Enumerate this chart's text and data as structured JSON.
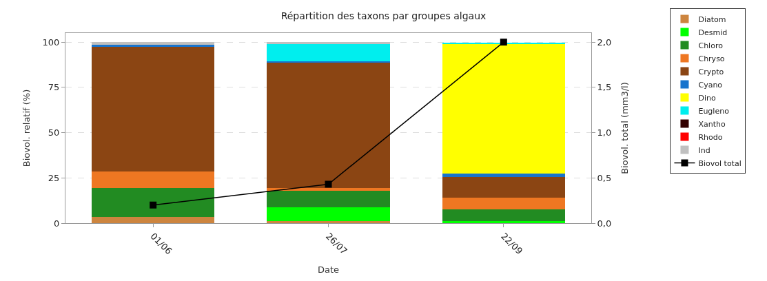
{
  "chart_data": {
    "type": "bar",
    "stacked": true,
    "title": "Répartition des taxons par groupes algaux",
    "xlabel": "Date",
    "ylabel": "Biovol. relatif (%)",
    "y2label": "Biovol. total (mm3/l)",
    "categories": [
      "01/06",
      "26/07",
      "22/09"
    ],
    "series": [
      {
        "name": "Diatom",
        "color": "#cd853f",
        "values": [
          3.6,
          1,
          0
        ]
      },
      {
        "name": "Desmid",
        "color": "#00ff00",
        "values": [
          0,
          7.7,
          1
        ]
      },
      {
        "name": "Chloro",
        "color": "#228b22",
        "values": [
          15.8,
          9,
          6.5
        ]
      },
      {
        "name": "Chryso",
        "color": "#ee7722",
        "values": [
          9.1,
          1.7,
          6.5
        ]
      },
      {
        "name": "Crypto",
        "color": "#8b4513",
        "values": [
          69,
          69.6,
          11.6
        ]
      },
      {
        "name": "Cyano",
        "color": "#1874cd",
        "values": [
          1,
          0.5,
          1.7
        ]
      },
      {
        "name": "Dino",
        "color": "#ffff00",
        "values": [
          0,
          0,
          71.5
        ]
      },
      {
        "name": "Eugleno",
        "color": "#00eeee",
        "values": [
          0,
          9.5,
          0.9
        ]
      },
      {
        "name": "Xantho",
        "color": "#330000",
        "values": [
          0,
          0,
          0
        ]
      },
      {
        "name": "Rhodo",
        "color": "#ff0000",
        "values": [
          0,
          0,
          0
        ]
      },
      {
        "name": "Ind",
        "color": "#c0c0c0",
        "values": [
          1.5,
          1,
          null
        ]
      },
      {
        "name": "Biovol total",
        "type": "line",
        "axis": "y2",
        "color": "#000000",
        "marker": "square",
        "values": [
          0.2,
          0.43,
          2.0
        ]
      }
    ],
    "ylim": [
      0,
      105
    ],
    "yticks": [
      0,
      25,
      50,
      75,
      100
    ],
    "y2lim": [
      0,
      2.1
    ],
    "y2ticks": [
      {
        "value": 0,
        "label": "0,0"
      },
      {
        "value": 0.5,
        "label": "0,5"
      },
      {
        "value": 1,
        "label": "1,0"
      },
      {
        "value": 1.5,
        "label": "1,5"
      },
      {
        "value": 2,
        "label": "2,0"
      }
    ],
    "grid": "y",
    "legend": "right"
  }
}
